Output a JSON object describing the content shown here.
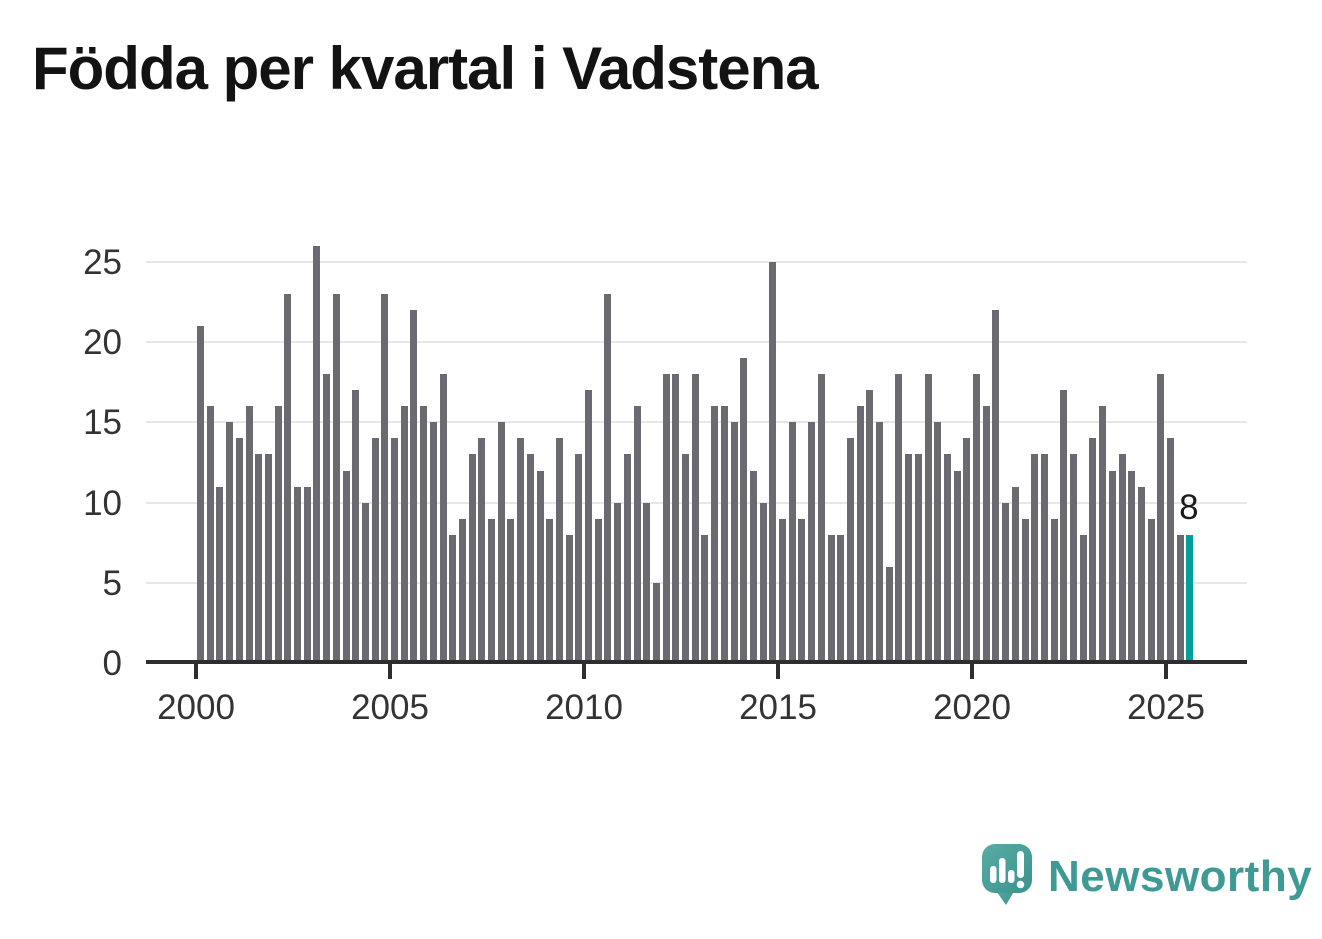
{
  "page": {
    "title": "Födda per kvartal i Vadstena"
  },
  "footer": {
    "brand": "Newsworthy",
    "logo_icon": "speech-bubble-bar-chart-icon"
  },
  "chart_data": {
    "type": "bar",
    "title": "Födda per kvartal i Vadstena",
    "x_unit": "quarter",
    "years": [
      {
        "year": 2000,
        "quarters": [
          21,
          16,
          11,
          15
        ]
      },
      {
        "year": 2001,
        "quarters": [
          14,
          16,
          13,
          13
        ]
      },
      {
        "year": 2002,
        "quarters": [
          16,
          23,
          11,
          11
        ]
      },
      {
        "year": 2003,
        "quarters": [
          26,
          18,
          23,
          12
        ]
      },
      {
        "year": 2004,
        "quarters": [
          17,
          10,
          14,
          23
        ]
      },
      {
        "year": 2005,
        "quarters": [
          14,
          16,
          22,
          16
        ]
      },
      {
        "year": 2006,
        "quarters": [
          15,
          18,
          8,
          9
        ]
      },
      {
        "year": 2007,
        "quarters": [
          13,
          14,
          9,
          15
        ]
      },
      {
        "year": 2008,
        "quarters": [
          9,
          14,
          13,
          12
        ]
      },
      {
        "year": 2009,
        "quarters": [
          9,
          14,
          8,
          13
        ]
      },
      {
        "year": 2010,
        "quarters": [
          17,
          9,
          23,
          10
        ]
      },
      {
        "year": 2011,
        "quarters": [
          13,
          16,
          10,
          5
        ]
      },
      {
        "year": 2012,
        "quarters": [
          18,
          18,
          13,
          18
        ]
      },
      {
        "year": 2013,
        "quarters": [
          8,
          16,
          16,
          15
        ]
      },
      {
        "year": 2014,
        "quarters": [
          19,
          12,
          10,
          25
        ]
      },
      {
        "year": 2015,
        "quarters": [
          9,
          15,
          9,
          15
        ]
      },
      {
        "year": 2016,
        "quarters": [
          18,
          8,
          8,
          14
        ]
      },
      {
        "year": 2017,
        "quarters": [
          16,
          17,
          15,
          6
        ]
      },
      {
        "year": 2018,
        "quarters": [
          18,
          13,
          13,
          18
        ]
      },
      {
        "year": 2019,
        "quarters": [
          15,
          13,
          12,
          14
        ]
      },
      {
        "year": 2020,
        "quarters": [
          18,
          16,
          22,
          10
        ]
      },
      {
        "year": 2021,
        "quarters": [
          11,
          9,
          13,
          13
        ]
      },
      {
        "year": 2022,
        "quarters": [
          9,
          17,
          13,
          8
        ]
      },
      {
        "year": 2023,
        "quarters": [
          14,
          16,
          12,
          13
        ]
      },
      {
        "year": 2024,
        "quarters": [
          12,
          11,
          9,
          18
        ]
      },
      {
        "year": 2025,
        "quarters": [
          14,
          8,
          8
        ]
      }
    ],
    "highlight": {
      "position": "last",
      "value": 8,
      "label": "8"
    },
    "yticks": [
      0,
      5,
      10,
      15,
      20,
      25
    ],
    "xtick_years": [
      2000,
      2005,
      2010,
      2015,
      2020,
      2025
    ],
    "ylim": [
      0,
      26
    ],
    "grid": true,
    "legend": "none",
    "colors": {
      "bar": "#6b6a71",
      "highlight": "#00a09a",
      "grid": "#e7e7e7",
      "axis": "#2e2e2e",
      "tick_text": "#333333",
      "title_text": "#131313",
      "brand": "#3e9a94"
    }
  }
}
